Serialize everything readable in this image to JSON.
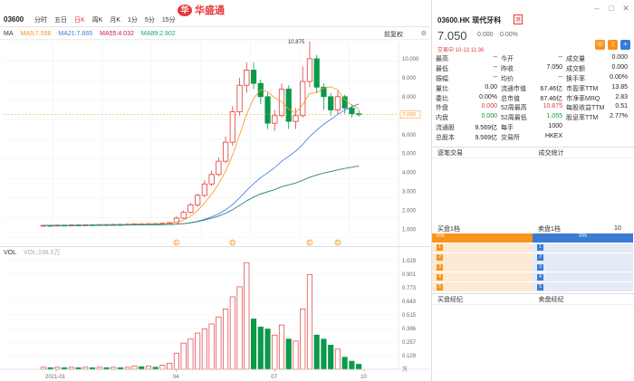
{
  "header": {
    "code": "03600",
    "tabs": [
      "分时",
      "五日",
      "日K",
      "周K",
      "月K",
      "1分",
      "5分",
      "15分"
    ],
    "active_tab": 2,
    "logo_text": "华盛通",
    "logo_mark": "华"
  },
  "ma_bar": {
    "label": "MA",
    "items": [
      {
        "text": "MA5:7.558",
        "color": "#f7941d"
      },
      {
        "text": "MA21:7.665",
        "color": "#3a7bd5"
      },
      {
        "text": "MA55:4.032",
        "color": "#c2185b"
      },
      {
        "text": "MA89:2.902",
        "color": "#1a9e8a"
      }
    ],
    "adjust": "前复权"
  },
  "vol_bar": {
    "label": "VOL",
    "value": "VOL:198.5万"
  },
  "stock": {
    "title": "03600.HK 现代牙科",
    "tag": "港",
    "price": "7.050",
    "change": "0.000",
    "change_pct": "0.00%",
    "status": "交易中 10-13 11:36"
  },
  "quote": [
    [
      {
        "l": "最高",
        "v": "--"
      },
      {
        "l": "今开",
        "v": "--"
      },
      {
        "l": "成交量",
        "v": "0.000"
      }
    ],
    [
      {
        "l": "最低",
        "v": "--"
      },
      {
        "l": "昨收",
        "v": "7.050"
      },
      {
        "l": "成交额",
        "v": "0.000"
      }
    ],
    [
      {
        "l": "振幅",
        "v": "--"
      },
      {
        "l": "均价",
        "v": "--"
      },
      {
        "l": "换手率",
        "v": "0.00%"
      }
    ],
    [
      {
        "l": "量比",
        "v": "0.00"
      },
      {
        "l": "流通市值",
        "v": "67.46亿"
      },
      {
        "l": "市盈率TTM",
        "v": "13.85"
      }
    ],
    [
      {
        "l": "委比",
        "v": "0.00%"
      },
      {
        "l": "总市值",
        "v": "67.46亿"
      },
      {
        "l": "市净率MRQ",
        "v": "2.83"
      }
    ],
    [
      {
        "l": "外盘",
        "v": "0.000",
        "c": "red"
      },
      {
        "l": "52周最高",
        "v": "10.875",
        "c": "red"
      },
      {
        "l": "每股收益TTM",
        "v": "0.51"
      }
    ],
    [
      {
        "l": "内盘",
        "v": "0.000",
        "c": "green"
      },
      {
        "l": "52周最低",
        "v": "1.055",
        "c": "green"
      },
      {
        "l": "股息率TTM",
        "v": "2.77%"
      }
    ],
    [
      {
        "l": "流通股",
        "v": "9.569亿"
      },
      {
        "l": "每手",
        "v": "1000"
      },
      {
        "l": "",
        "v": ""
      }
    ],
    [
      {
        "l": "总股本",
        "v": "9.569亿"
      },
      {
        "l": "交易所",
        "v": "HKEX"
      },
      {
        "l": "",
        "v": ""
      }
    ]
  ],
  "sections": {
    "trades": "逐笔交易",
    "stats": "成交统计",
    "buy_head": "买盘1档",
    "sell_head": "卖盘1档",
    "levels": "10",
    "buy_pct": "0%",
    "sell_pct": "0%",
    "buy_broker": "买盘经纪",
    "sell_broker": "卖盘经纪"
  },
  "chart_data": [
    {
      "type": "candlestick",
      "title": "",
      "x_ticks": [
        "2021-01",
        "04",
        "07",
        "10"
      ],
      "y_ticks": [
        "10.000",
        "9.000",
        "8.000",
        "7.000",
        "6.000",
        "5.000",
        "4.000",
        "3.000",
        "2.000",
        "1.000"
      ],
      "last_price_label": "7.050",
      "high_label": "10.875",
      "ylim": [
        0.6,
        10.9
      ],
      "note_markers": [
        "E",
        "D",
        "E",
        "D"
      ],
      "candles": [
        [
          1.2,
          1.22,
          1.18,
          1.24,
          0
        ],
        [
          1.22,
          1.2,
          1.18,
          1.25,
          1
        ],
        [
          1.2,
          1.23,
          1.19,
          1.26,
          0
        ],
        [
          1.23,
          1.21,
          1.2,
          1.25,
          1
        ],
        [
          1.21,
          1.24,
          1.2,
          1.26,
          0
        ],
        [
          1.24,
          1.22,
          1.21,
          1.27,
          1
        ],
        [
          1.22,
          1.25,
          1.21,
          1.27,
          0
        ],
        [
          1.25,
          1.23,
          1.22,
          1.28,
          1
        ],
        [
          1.23,
          1.26,
          1.22,
          1.28,
          0
        ],
        [
          1.26,
          1.24,
          1.23,
          1.29,
          1
        ],
        [
          1.24,
          1.27,
          1.23,
          1.3,
          0
        ],
        [
          1.27,
          1.25,
          1.24,
          1.3,
          1
        ],
        [
          1.25,
          1.28,
          1.24,
          1.31,
          0
        ],
        [
          1.28,
          1.3,
          1.26,
          1.33,
          0
        ],
        [
          1.3,
          1.28,
          1.26,
          1.33,
          1
        ],
        [
          1.28,
          1.31,
          1.27,
          1.34,
          0
        ],
        [
          1.31,
          1.29,
          1.27,
          1.34,
          1
        ],
        [
          1.29,
          1.33,
          1.28,
          1.36,
          0
        ],
        [
          1.33,
          1.36,
          1.31,
          1.4,
          0
        ],
        [
          1.36,
          1.6,
          1.34,
          1.7,
          0
        ],
        [
          1.6,
          1.9,
          1.55,
          2.0,
          0
        ],
        [
          1.9,
          2.3,
          1.85,
          2.4,
          0
        ],
        [
          2.3,
          2.8,
          2.2,
          2.9,
          0
        ],
        [
          2.8,
          3.4,
          2.7,
          3.6,
          0
        ],
        [
          3.4,
          3.9,
          3.3,
          4.1,
          0
        ],
        [
          3.9,
          4.6,
          3.8,
          4.8,
          0
        ],
        [
          4.6,
          5.6,
          4.5,
          5.9,
          0
        ],
        [
          5.6,
          7.2,
          5.4,
          7.5,
          0
        ],
        [
          7.2,
          8.6,
          7.0,
          9.0,
          0
        ],
        [
          8.6,
          9.4,
          8.2,
          9.8,
          0
        ],
        [
          9.4,
          8.7,
          8.4,
          9.8,
          1
        ],
        [
          8.7,
          8.0,
          7.6,
          8.9,
          1
        ],
        [
          8.0,
          6.6,
          6.3,
          8.2,
          1
        ],
        [
          6.6,
          7.0,
          6.2,
          7.3,
          0
        ],
        [
          7.0,
          8.4,
          6.9,
          8.7,
          0
        ],
        [
          8.4,
          6.7,
          6.3,
          8.6,
          1
        ],
        [
          6.7,
          7.0,
          6.3,
          7.4,
          0
        ],
        [
          7.0,
          8.8,
          6.9,
          9.6,
          0
        ],
        [
          8.8,
          10.0,
          8.5,
          10.9,
          0
        ],
        [
          10.0,
          8.5,
          8.2,
          10.2,
          1
        ],
        [
          8.5,
          8.0,
          7.3,
          8.7,
          1
        ],
        [
          8.0,
          7.3,
          7.0,
          8.2,
          1
        ],
        [
          7.3,
          8.0,
          7.1,
          8.3,
          0
        ],
        [
          8.0,
          7.4,
          7.1,
          8.1,
          1
        ],
        [
          7.4,
          7.1,
          6.9,
          7.6,
          1
        ],
        [
          7.1,
          7.05,
          6.95,
          7.3,
          1
        ]
      ]
    },
    {
      "type": "bar",
      "title": "",
      "series_name": "VOL",
      "y_ticks": [
        "1.029",
        "0.901",
        "0.773",
        "0.643",
        "0.515",
        "0.386",
        "0.257",
        "0.129",
        "万"
      ],
      "ylim": [
        0,
        1.08
      ],
      "values": [
        0.02,
        0.015,
        0.02,
        0.015,
        0.02,
        0.015,
        0.02,
        0.015,
        0.02,
        0.015,
        0.02,
        0.015,
        0.02,
        0.03,
        0.025,
        0.03,
        0.02,
        0.04,
        0.06,
        0.16,
        0.26,
        0.3,
        0.36,
        0.4,
        0.45,
        0.52,
        0.6,
        0.72,
        0.82,
        1.06,
        0.5,
        0.42,
        0.4,
        0.34,
        0.44,
        0.3,
        0.28,
        0.6,
        0.94,
        0.34,
        0.3,
        0.24,
        0.2,
        0.12,
        0.08,
        0.05
      ]
    }
  ]
}
